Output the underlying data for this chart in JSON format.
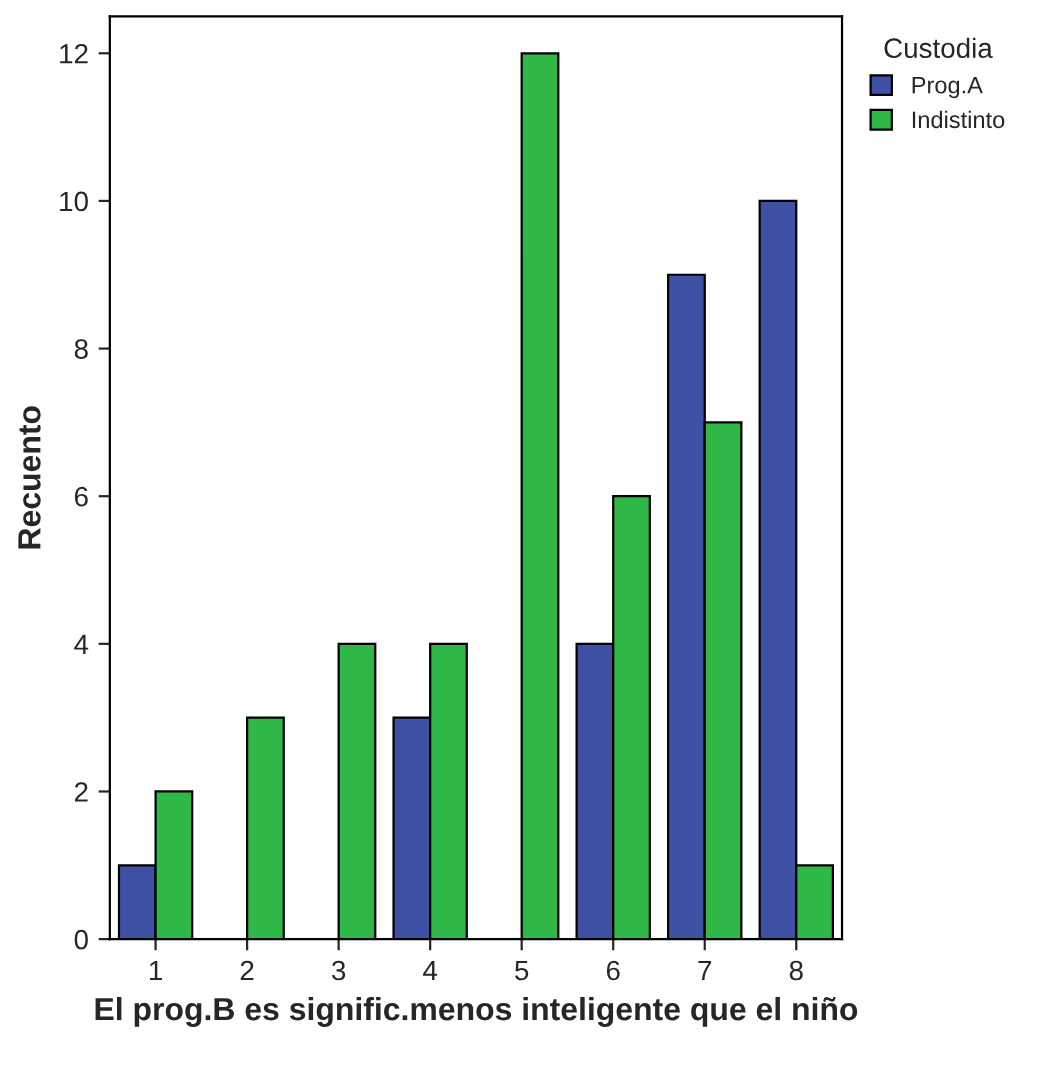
{
  "chart_data": {
    "type": "bar",
    "xlabel": "El prog.B es signific.menos inteligente que el niño",
    "ylabel": "Recuento",
    "legend_title": "Custodia",
    "categories": [
      "1",
      "2",
      "3",
      "4",
      "5",
      "6",
      "7",
      "8"
    ],
    "series": [
      {
        "name": "Prog.A",
        "color": "#3f51a5",
        "values": [
          1,
          0,
          0,
          3,
          0,
          4,
          9,
          10
        ]
      },
      {
        "name": "Indistinto",
        "color": "#2fb848",
        "values": [
          2,
          3,
          4,
          4,
          12,
          6,
          7,
          1
        ]
      }
    ],
    "ylim": [
      0,
      12.5
    ],
    "yticks": [
      0,
      2,
      4,
      6,
      8,
      10,
      12
    ],
    "grid": false,
    "legend": "top right"
  }
}
